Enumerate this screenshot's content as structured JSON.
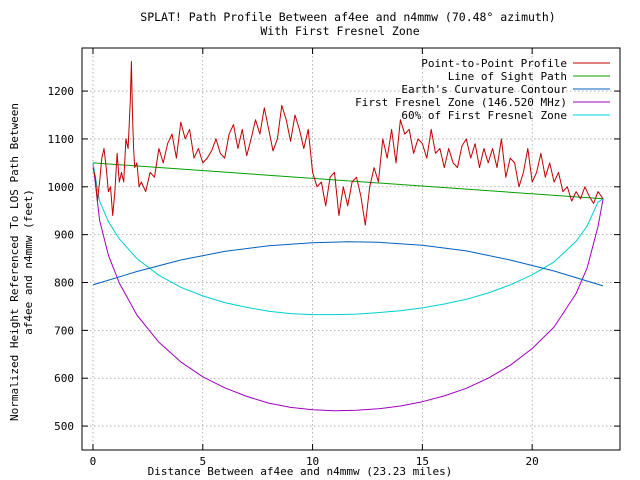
{
  "chart_data": {
    "type": "line",
    "title": "SPLAT! Path Profile Between af4ee and n4mmw (70.48° azimuth)",
    "subtitle": "With First Fresnel Zone",
    "xlabel": "Distance Between af4ee and n4mmw (23.23 miles)",
    "ylabel_line1": "Normalized Height Referenced To LOS Path Between",
    "ylabel_line2": "af4ee and n4mmw (feet)",
    "xlim": [
      -0.5,
      24
    ],
    "ylim": [
      450,
      1290
    ],
    "xticks": [
      0,
      5,
      10,
      15,
      20
    ],
    "yticks": [
      500,
      600,
      700,
      800,
      900,
      1000,
      1100,
      1200
    ],
    "grid": true,
    "legend_position": "top-right",
    "series": [
      {
        "name": "Point-to-Point Profile",
        "color": "#c00000",
        "x": [
          0,
          0.1,
          0.2,
          0.3,
          0.4,
          0.5,
          0.6,
          0.7,
          0.8,
          0.9,
          1.0,
          1.1,
          1.2,
          1.3,
          1.4,
          1.5,
          1.6,
          1.7,
          1.75,
          1.8,
          1.85,
          1.9,
          2.0,
          2.1,
          2.2,
          2.4,
          2.6,
          2.8,
          3.0,
          3.2,
          3.4,
          3.6,
          3.8,
          4.0,
          4.2,
          4.4,
          4.6,
          4.8,
          5.0,
          5.2,
          5.4,
          5.6,
          5.8,
          6.0,
          6.2,
          6.4,
          6.6,
          6.8,
          7.0,
          7.2,
          7.4,
          7.6,
          7.8,
          8.0,
          8.2,
          8.4,
          8.6,
          8.8,
          9.0,
          9.2,
          9.4,
          9.6,
          9.8,
          10.0,
          10.2,
          10.4,
          10.6,
          10.8,
          11.0,
          11.2,
          11.4,
          11.6,
          11.8,
          12.0,
          12.2,
          12.4,
          12.6,
          12.8,
          13.0,
          13.2,
          13.4,
          13.6,
          13.8,
          14.0,
          14.2,
          14.4,
          14.6,
          14.8,
          15.0,
          15.2,
          15.4,
          15.6,
          15.8,
          16.0,
          16.2,
          16.4,
          16.6,
          16.8,
          17.0,
          17.2,
          17.4,
          17.6,
          17.8,
          18.0,
          18.2,
          18.4,
          18.6,
          18.8,
          19.0,
          19.2,
          19.4,
          19.6,
          19.8,
          20.0,
          20.2,
          20.4,
          20.6,
          20.8,
          21.0,
          21.2,
          21.4,
          21.6,
          21.8,
          22.0,
          22.2,
          22.4,
          22.6,
          22.8,
          23.0,
          23.23
        ],
        "values": [
          1040,
          1020,
          970,
          1010,
          1060,
          1080,
          1040,
          990,
          1000,
          940,
          990,
          1070,
          1010,
          1030,
          1010,
          1100,
          1080,
          1180,
          1262,
          1150,
          1080,
          1040,
          1050,
          1000,
          1010,
          990,
          1030,
          1020,
          1080,
          1050,
          1090,
          1110,
          1060,
          1135,
          1100,
          1120,
          1060,
          1080,
          1050,
          1060,
          1075,
          1100,
          1070,
          1060,
          1110,
          1130,
          1080,
          1120,
          1065,
          1100,
          1140,
          1110,
          1165,
          1120,
          1075,
          1100,
          1170,
          1140,
          1095,
          1150,
          1120,
          1080,
          1120,
          1030,
          1000,
          1010,
          960,
          1020,
          1030,
          940,
          1000,
          960,
          1010,
          1020,
          980,
          920,
          1000,
          1040,
          1010,
          1100,
          1060,
          1120,
          1050,
          1140,
          1110,
          1120,
          1070,
          1100,
          1090,
          1060,
          1120,
          1070,
          1080,
          1040,
          1080,
          1050,
          1040,
          1085,
          1100,
          1060,
          1090,
          1040,
          1080,
          1050,
          1080,
          1040,
          1100,
          1020,
          1060,
          1050,
          1000,
          1030,
          1080,
          1010,
          1030,
          1070,
          1020,
          1050,
          1010,
          1030,
          990,
          1000,
          970,
          990,
          975,
          1000,
          980,
          965,
          990,
          975
        ]
      },
      {
        "name": "Line of Sight Path",
        "color": "#00a000",
        "x": [
          0,
          23.23
        ],
        "values": [
          1050,
          975
        ]
      },
      {
        "name": "Earth's Curvature Contour",
        "color": "#0060c0",
        "x": [
          0,
          2,
          4,
          6,
          8,
          10,
          11.6,
          13,
          15,
          17,
          19,
          21,
          23.23
        ],
        "values": [
          795,
          823,
          847,
          865,
          877,
          883,
          885,
          884,
          878,
          866,
          847,
          824,
          793
        ]
      },
      {
        "name": "First Fresnel Zone (146.520 MHz)",
        "color": "#a000c0",
        "x": [
          0,
          0.3,
          0.7,
          1.2,
          2,
          3,
          4,
          5,
          6,
          7,
          8,
          9,
          10,
          11,
          12,
          13,
          14,
          15,
          16,
          17,
          18,
          19,
          20,
          21,
          22,
          22.5,
          23,
          23.23
        ],
        "values": [
          1050,
          930,
          857,
          799,
          732,
          675,
          634,
          603,
          580,
          562,
          548,
          539,
          534,
          532,
          533,
          536,
          542,
          551,
          563,
          579,
          600,
          627,
          662,
          707,
          777,
          830,
          917,
          975
        ]
      },
      {
        "name": "60% of First Fresnel Zone",
        "color": "#00d0d0",
        "x": [
          0,
          0.3,
          0.7,
          1.2,
          2,
          3,
          4,
          5,
          6,
          7,
          8,
          9,
          10,
          11,
          12,
          13,
          14,
          15,
          16,
          17,
          18,
          19,
          20,
          21,
          22,
          22.5,
          23,
          23.23
        ],
        "values": [
          1050,
          970,
          927,
          891,
          850,
          815,
          790,
          772,
          758,
          748,
          740,
          735,
          733,
          733,
          734,
          737,
          741,
          747,
          755,
          765,
          778,
          795,
          816,
          843,
          886,
          918,
          968,
          975
        ]
      }
    ]
  }
}
